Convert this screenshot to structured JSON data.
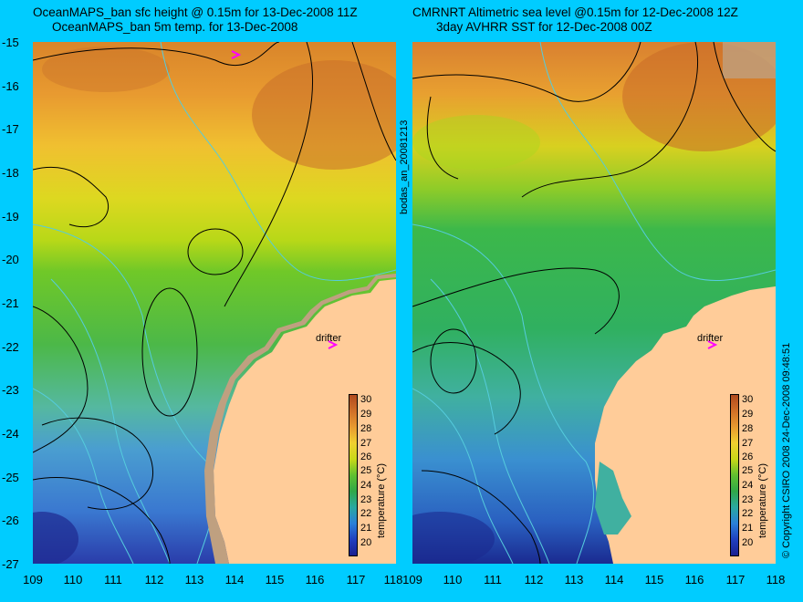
{
  "panels": [
    {
      "title_line1": "OceanMAPS_ban sfc height @ 0.15m for 13-Dec-2008 11Z",
      "title_line2": "OceanMAPS_ban 5m temp. for 13-Dec-2008"
    },
    {
      "title_line1": "CMRNRT Altimetric sea level  @0.15m  for 12-Dec-2008 12Z",
      "title_line2": "3day AVHRR SST for 12-Dec-2008 00Z"
    }
  ],
  "y_ticks": [
    "-15",
    "-16",
    "-17",
    "-18",
    "-19",
    "-20",
    "-21",
    "-22",
    "-23",
    "-24",
    "-25",
    "-26",
    "-27"
  ],
  "x_ticks": [
    "109",
    "110",
    "111",
    "112",
    "113",
    "114",
    "115",
    "116",
    "117",
    "118"
  ],
  "drifter_label": "drifter",
  "middle_vertical_label": "bodas_an_20081213",
  "right_vertical_label": "© Copyright CSIRO 2008   24-Dec-2008 09:48:51",
  "colorbar": {
    "title": "temperature (°C)",
    "ticks": [
      "30",
      "29",
      "28",
      "27",
      "26",
      "25",
      "24",
      "23",
      "22",
      "21",
      "20"
    ]
  },
  "colors": {
    "background": "#00ccff",
    "land": "#ffcc99",
    "coast": "#bfa080",
    "contour": "#000000",
    "bathymetry": "#55ccdd",
    "drifter_marker": "#ff00ff"
  }
}
